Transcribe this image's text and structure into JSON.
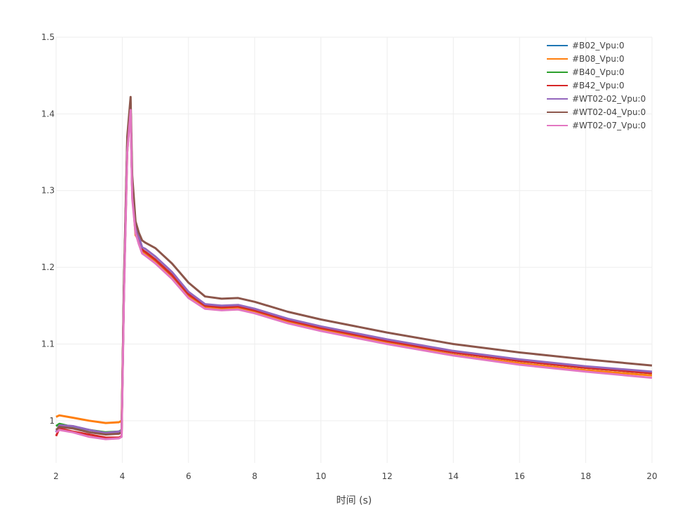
{
  "chart_data": {
    "type": "line",
    "title": "",
    "xlabel": "时间 (s)",
    "ylabel": "",
    "xlim": [
      2,
      20
    ],
    "ylim": [
      0.945,
      1.5
    ],
    "grid": true,
    "legend_position": "top-right",
    "x_ticks": [
      2,
      4,
      6,
      8,
      10,
      12,
      14,
      16,
      18,
      20
    ],
    "x_tick_labels": [
      "2",
      "4",
      "6",
      "8",
      "10",
      "12",
      "14",
      "16",
      "18",
      "20"
    ],
    "y_ticks": [
      1.0,
      1.1,
      1.2,
      1.3,
      1.4,
      1.5
    ],
    "y_tick_labels": [
      "1",
      "1.1",
      "1.2",
      "1.3",
      "1.4",
      "1.5"
    ],
    "x": [
      2.0,
      2.1,
      2.5,
      3.0,
      3.5,
      3.9,
      3.98,
      4.05,
      4.15,
      4.25,
      4.3,
      4.4,
      4.5,
      4.6,
      4.7,
      5.0,
      5.5,
      6.0,
      6.5,
      7.0,
      7.5,
      8.0,
      9.0,
      10.0,
      12.0,
      14.0,
      16.0,
      18.0,
      20.0
    ],
    "series": [
      {
        "name": "#B02_Vpu:0",
        "color": "#1f77b4",
        "values": [
          0.985,
          0.994,
          0.993,
          0.988,
          0.984,
          0.986,
          0.987,
          1.17,
          1.36,
          1.41,
          1.3,
          1.25,
          1.235,
          1.223,
          1.22,
          1.21,
          1.19,
          1.165,
          1.15,
          1.148,
          1.149,
          1.144,
          1.131,
          1.121,
          1.104,
          1.089,
          1.078,
          1.069,
          1.062
        ]
      },
      {
        "name": "#B08_Vpu:0",
        "color": "#ff7f0e",
        "values": [
          1.005,
          1.007,
          1.004,
          1.0,
          0.997,
          0.998,
          1.0,
          1.17,
          1.35,
          1.41,
          1.3,
          1.242,
          1.235,
          1.22,
          1.218,
          1.208,
          1.186,
          1.162,
          1.148,
          1.146,
          1.147,
          1.142,
          1.129,
          1.119,
          1.102,
          1.086,
          1.075,
          1.066,
          1.059
        ]
      },
      {
        "name": "#B40_Vpu:0",
        "color": "#2ca02c",
        "values": [
          0.993,
          0.996,
          0.992,
          0.988,
          0.985,
          0.986,
          0.988,
          1.17,
          1.36,
          1.41,
          1.3,
          1.25,
          1.235,
          1.223,
          1.22,
          1.21,
          1.19,
          1.165,
          1.15,
          1.148,
          1.149,
          1.144,
          1.131,
          1.121,
          1.104,
          1.089,
          1.078,
          1.069,
          1.062
        ]
      },
      {
        "name": "#B42_Vpu:0",
        "color": "#d62728",
        "values": [
          0.98,
          0.99,
          0.986,
          0.982,
          0.978,
          0.978,
          0.98,
          1.17,
          1.36,
          1.41,
          1.3,
          1.25,
          1.235,
          1.223,
          1.22,
          1.21,
          1.19,
          1.165,
          1.15,
          1.148,
          1.149,
          1.144,
          1.131,
          1.121,
          1.104,
          1.089,
          1.078,
          1.069,
          1.062
        ]
      },
      {
        "name": "#WT02-02_Vpu:0",
        "color": "#9467bd",
        "values": [
          0.985,
          0.994,
          0.993,
          0.988,
          0.984,
          0.986,
          0.987,
          1.17,
          1.36,
          1.41,
          1.3,
          1.255,
          1.24,
          1.226,
          1.224,
          1.214,
          1.194,
          1.168,
          1.152,
          1.15,
          1.151,
          1.146,
          1.133,
          1.123,
          1.106,
          1.091,
          1.08,
          1.071,
          1.064
        ]
      },
      {
        "name": "#WT02-04_Vpu:0",
        "color": "#8c564b",
        "values": [
          0.988,
          0.992,
          0.99,
          0.985,
          0.982,
          0.983,
          0.985,
          1.18,
          1.37,
          1.422,
          1.32,
          1.26,
          1.245,
          1.235,
          1.232,
          1.225,
          1.205,
          1.18,
          1.162,
          1.159,
          1.16,
          1.155,
          1.142,
          1.132,
          1.115,
          1.1,
          1.089,
          1.08,
          1.072
        ]
      },
      {
        "name": "#WT02-07_Vpu:0",
        "color": "#e377c2",
        "values": [
          0.985,
          0.988,
          0.985,
          0.979,
          0.976,
          0.977,
          0.979,
          1.16,
          1.35,
          1.405,
          1.29,
          1.245,
          1.23,
          1.218,
          1.215,
          1.205,
          1.185,
          1.16,
          1.146,
          1.144,
          1.145,
          1.14,
          1.127,
          1.117,
          1.1,
          1.085,
          1.073,
          1.064,
          1.056
        ]
      }
    ]
  }
}
